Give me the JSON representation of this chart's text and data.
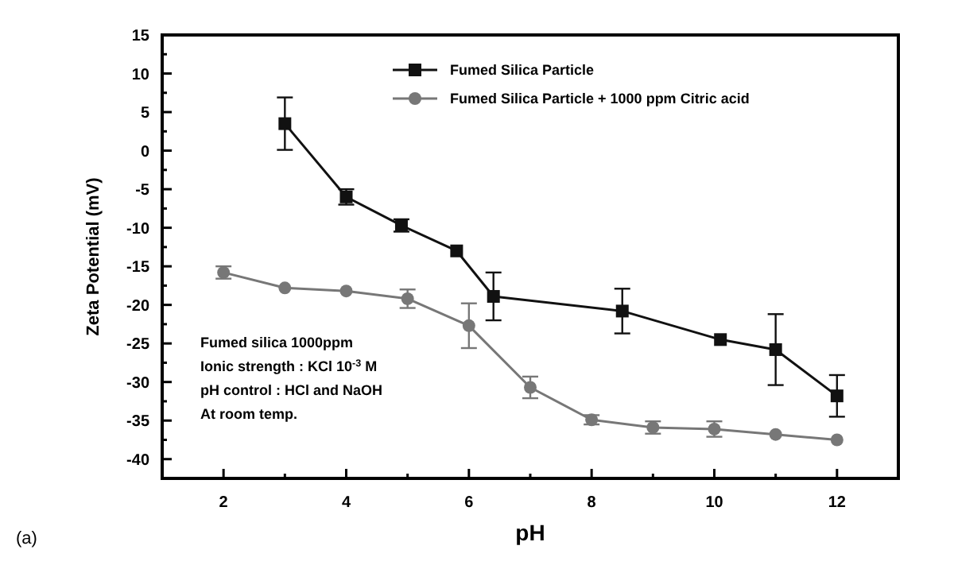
{
  "chart_data": {
    "type": "line",
    "xlabel": "pH",
    "ylabel": "Zeta Potential (mV)",
    "xlim": [
      1,
      13
    ],
    "xticks": [
      {
        "value": 1,
        "label": null
      },
      2,
      {
        "value": 3,
        "label": null
      },
      4,
      {
        "value": 5,
        "label": null
      },
      6,
      {
        "value": 7,
        "label": null
      },
      8,
      {
        "value": 9,
        "label": null
      },
      10,
      {
        "value": 11,
        "label": null
      },
      12
    ],
    "ylim": [
      -42.5,
      15
    ],
    "yticks": [
      15,
      {
        "value": 12.5,
        "label": null
      },
      10,
      {
        "value": 7.5,
        "label": null
      },
      5,
      {
        "value": 2.5,
        "label": null
      },
      0,
      {
        "value": -2.5,
        "label": null
      },
      -5,
      {
        "value": -7.5,
        "label": null
      },
      -10,
      {
        "value": -12.5,
        "label": null
      },
      -15,
      {
        "value": -17.5,
        "label": null
      },
      -20,
      {
        "value": -22.5,
        "label": null
      },
      -25,
      {
        "value": -27.5,
        "label": null
      },
      -30,
      {
        "value": -32.5,
        "label": null
      },
      -35,
      {
        "value": -37.5,
        "label": null
      },
      -40
    ],
    "legend": "top right",
    "grid": false,
    "series": [
      {
        "name": "Fumed Silica Particle",
        "color": "#111111",
        "marker": "square",
        "x": [
          3,
          4,
          4.9,
          5.8,
          6.4,
          8.5,
          10.1,
          11,
          12
        ],
        "values": [
          3.5,
          -6,
          -9.7,
          -13,
          -18.9,
          -20.8,
          -24.5,
          -25.8,
          -31.8
        ],
        "errors": [
          3.4,
          1,
          0.8,
          null,
          3.1,
          2.9,
          null,
          4.6,
          2.7
        ]
      },
      {
        "name": "Fumed Silica Particle + 1000 ppm Citric acid",
        "color": "#777777",
        "marker": "circle",
        "x": [
          2,
          3,
          4,
          5,
          6,
          7,
          8,
          9,
          10,
          11,
          12
        ],
        "values": [
          -15.8,
          -17.8,
          -18.2,
          -19.2,
          -22.7,
          -30.7,
          -34.9,
          -35.9,
          -36.1,
          -36.8,
          -37.5
        ],
        "errors": [
          0.8,
          null,
          null,
          1.2,
          2.9,
          1.4,
          0.6,
          0.8,
          1,
          null,
          null
        ]
      }
    ],
    "annotations": [
      "Fumed silica 1000ppm",
      "Ionic strength : KCl 10$^{-3}$ M",
      "pH control : HCl and NaOH",
      "At room temp.",
      "(a)"
    ]
  }
}
